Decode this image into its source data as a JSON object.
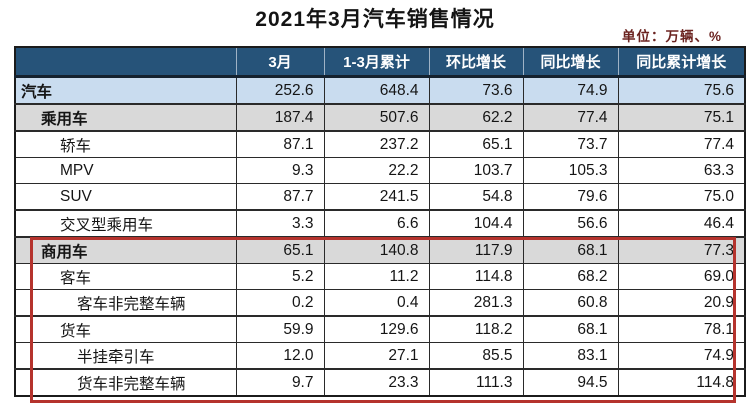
{
  "title": "2021年3月汽车销售情况",
  "unit_label": "单位：万辆、%",
  "chart_data": {
    "type": "table",
    "title": "2021年3月汽车销售情况",
    "unit": "万辆、%",
    "columns": [
      "",
      "3月",
      "1-3月累计",
      "环比增长",
      "同比增长",
      "同比累计增长"
    ],
    "rows": [
      {
        "label": "汽车",
        "indent": 0,
        "values": [
          "252.6",
          "648.4",
          "73.6",
          "74.9",
          "75.6"
        ]
      },
      {
        "label": "乘用车",
        "indent": 1,
        "values": [
          "187.4",
          "507.6",
          "62.2",
          "77.4",
          "75.1"
        ]
      },
      {
        "label": "轿车",
        "indent": 2,
        "values": [
          "87.1",
          "237.2",
          "65.1",
          "73.7",
          "77.4"
        ]
      },
      {
        "label": "MPV",
        "indent": 2,
        "values": [
          "9.3",
          "22.2",
          "103.7",
          "105.3",
          "63.3"
        ]
      },
      {
        "label": "SUV",
        "indent": 2,
        "values": [
          "87.7",
          "241.5",
          "54.8",
          "79.6",
          "75.0"
        ]
      },
      {
        "label": "交叉型乘用车",
        "indent": 2,
        "values": [
          "3.3",
          "6.6",
          "104.4",
          "56.6",
          "46.4"
        ]
      },
      {
        "label": "商用车",
        "indent": 1,
        "values": [
          "65.1",
          "140.8",
          "117.9",
          "68.1",
          "77.3"
        ]
      },
      {
        "label": "客车",
        "indent": 2,
        "values": [
          "5.2",
          "11.2",
          "114.8",
          "68.2",
          "69.0"
        ]
      },
      {
        "label": "客车非完整车辆",
        "indent": 3,
        "values": [
          "0.2",
          "0.4",
          "281.3",
          "60.8",
          "20.9"
        ]
      },
      {
        "label": "货车",
        "indent": 2,
        "values": [
          "59.9",
          "129.6",
          "118.2",
          "68.1",
          "78.1"
        ]
      },
      {
        "label": "半挂牵引车",
        "indent": 3,
        "values": [
          "12.0",
          "27.1",
          "85.5",
          "83.1",
          "74.9"
        ]
      },
      {
        "label": "货车非完整车辆",
        "indent": 3,
        "values": [
          "9.7",
          "23.3",
          "111.3",
          "94.5",
          "114.8"
        ]
      }
    ],
    "annotation": {
      "highlighted_rows": [
        "商用车",
        "客车",
        "客车非完整车辆",
        "货车",
        "半挂牵引车",
        "货车非完整车辆"
      ],
      "highlight_color": "#b5332d"
    },
    "layout": {
      "header_bg": "#265379",
      "row_blue_bg": "#c9dcef",
      "row_gray_bg": "#d9d9d9",
      "grid": true
    }
  }
}
